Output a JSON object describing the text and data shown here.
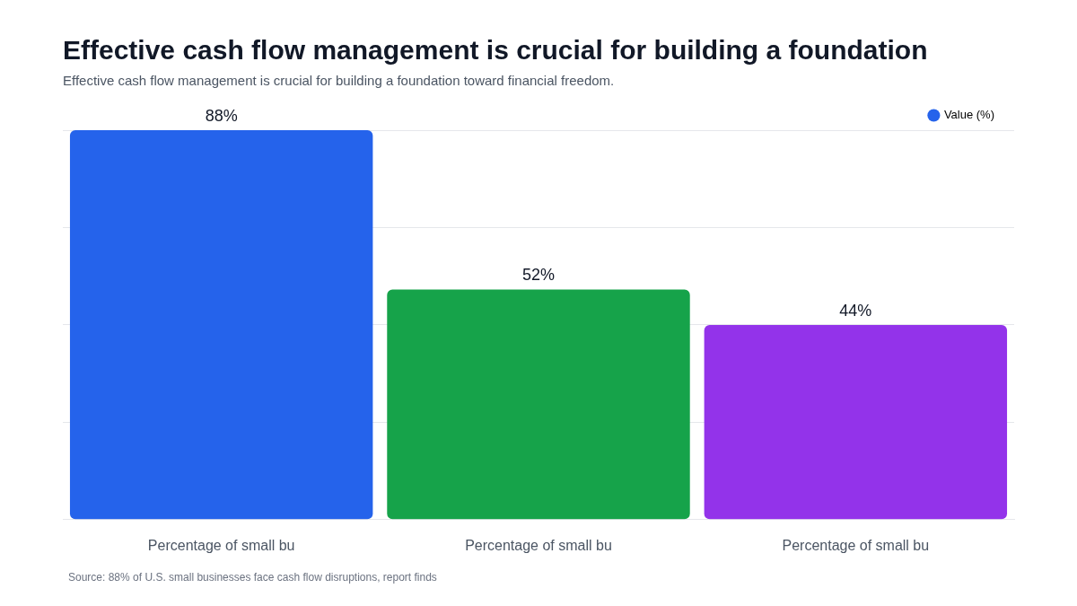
{
  "chart_data": {
    "type": "bar",
    "title": "Effective cash flow management is crucial for building a foundation",
    "subtitle": "Effective cash flow management is crucial for building a foundation toward financial freedom.",
    "categories": [
      "Percentage of small bu",
      "Percentage of small bu",
      "Percentage of small bu"
    ],
    "series": [
      {
        "name": "Value (%)",
        "colors": [
          "#2563eb",
          "#16a34a",
          "#9333ea"
        ],
        "values": [
          88,
          52,
          44
        ],
        "value_labels": [
          "88%",
          "52%",
          "44%"
        ]
      }
    ],
    "tick_labels": "x",
    "grid": "y",
    "legend": "top right",
    "annotations": [
      "Source: 88% of U.S. small businesses face cash flow disruptions, report finds"
    ]
  }
}
